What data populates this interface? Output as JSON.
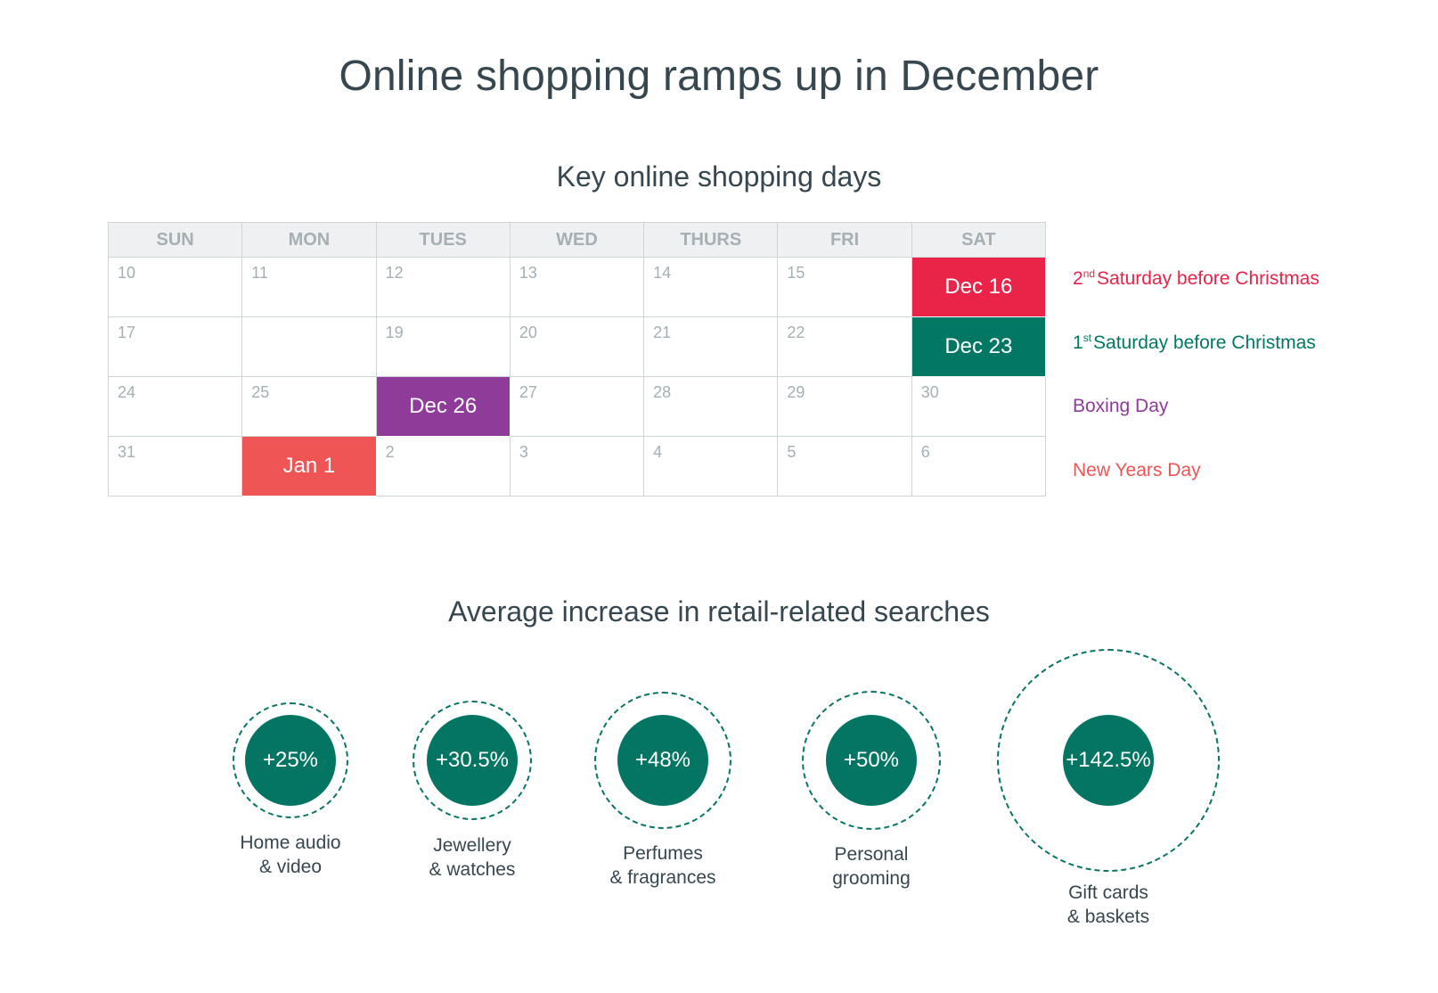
{
  "title": "Online shopping ramps up in December",
  "calendar": {
    "title": "Key online shopping days",
    "weekdays": [
      "SUN",
      "MON",
      "TUES",
      "WED",
      "THURS",
      "FRI",
      "SAT"
    ],
    "weeks": [
      [
        {
          "day": "10"
        },
        {
          "day": "11"
        },
        {
          "day": "12"
        },
        {
          "day": "13"
        },
        {
          "day": "14"
        },
        {
          "day": "15"
        },
        {
          "day": "",
          "highlight": "Dec 16",
          "color": "#ea2349"
        }
      ],
      [
        {
          "day": "17"
        },
        {
          "day": ""
        },
        {
          "day": "19"
        },
        {
          "day": "20"
        },
        {
          "day": "21"
        },
        {
          "day": "22"
        },
        {
          "day": "",
          "highlight": "Dec 23",
          "color": "#027864"
        }
      ],
      [
        {
          "day": "24"
        },
        {
          "day": "25"
        },
        {
          "day": "",
          "highlight": "Dec 26",
          "color": "#8e3b99"
        },
        {
          "day": "27"
        },
        {
          "day": "28"
        },
        {
          "day": "29"
        },
        {
          "day": "30"
        }
      ],
      [
        {
          "day": "31"
        },
        {
          "day": "",
          "highlight": "Jan 1",
          "color": "#f05555"
        },
        {
          "day": "2"
        },
        {
          "day": "3"
        },
        {
          "day": "4"
        },
        {
          "day": "5"
        },
        {
          "day": "6"
        }
      ]
    ],
    "legend": [
      {
        "ordinal": "2",
        "suffix": "nd",
        "label": "Saturday before Christmas",
        "color": "#ea2349"
      },
      {
        "ordinal": "1",
        "suffix": "st",
        "label": "Saturday before Christmas",
        "color": "#027864"
      },
      {
        "ordinal": "",
        "suffix": "",
        "label": "Boxing Day",
        "color": "#8e3b99"
      },
      {
        "ordinal": "",
        "suffix": "",
        "label": "New Years Day",
        "color": "#f05555"
      }
    ]
  },
  "chart_data": {
    "type": "bubble",
    "title": "Average increase in retail-related searches",
    "unit": "%",
    "categories": [
      "Home audio & video",
      "Jewellery & watches",
      "Perfumes & fragrances",
      "Personal grooming",
      "Gift cards & baskets"
    ],
    "values": [
      25,
      30.5,
      48,
      50,
      142.5
    ],
    "series": [
      {
        "value_label": "+25%",
        "label_lines": [
          "Home audio",
          "& video"
        ]
      },
      {
        "value_label": "+30.5%",
        "label_lines": [
          "Jewellery",
          "& watches"
        ]
      },
      {
        "value_label": "+48%",
        "label_lines": [
          "Perfumes",
          "& fragrances"
        ]
      },
      {
        "value_label": "+50%",
        "label_lines": [
          "Personal",
          "grooming"
        ]
      },
      {
        "value_label": "+142.5%",
        "label_lines": [
          "Gift cards",
          "& baskets"
        ]
      }
    ],
    "color": "#047563"
  }
}
